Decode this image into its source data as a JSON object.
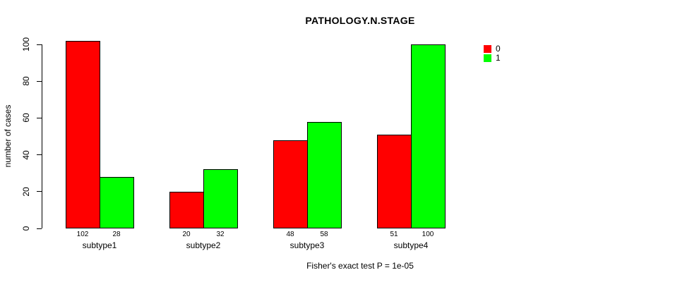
{
  "chart_data": {
    "type": "bar",
    "title": "PATHOLOGY.N.STAGE",
    "ylabel": "number of cases",
    "xlabel": "",
    "footer": "Fisher's exact test P = 1e-05",
    "categories": [
      "subtype1",
      "subtype2",
      "subtype3",
      "subtype4"
    ],
    "series": [
      {
        "name": "0",
        "color": "#FF0000",
        "values": [
          102,
          20,
          48,
          51
        ]
      },
      {
        "name": "1",
        "color": "#00FF00",
        "values": [
          28,
          32,
          58,
          100
        ]
      }
    ],
    "yticks": [
      0,
      20,
      40,
      60,
      80,
      100
    ],
    "ylim": [
      0,
      100
    ],
    "grid": false,
    "legend_position": "top-right",
    "bar_border_color": "#000000",
    "axis_color": "#000000"
  }
}
